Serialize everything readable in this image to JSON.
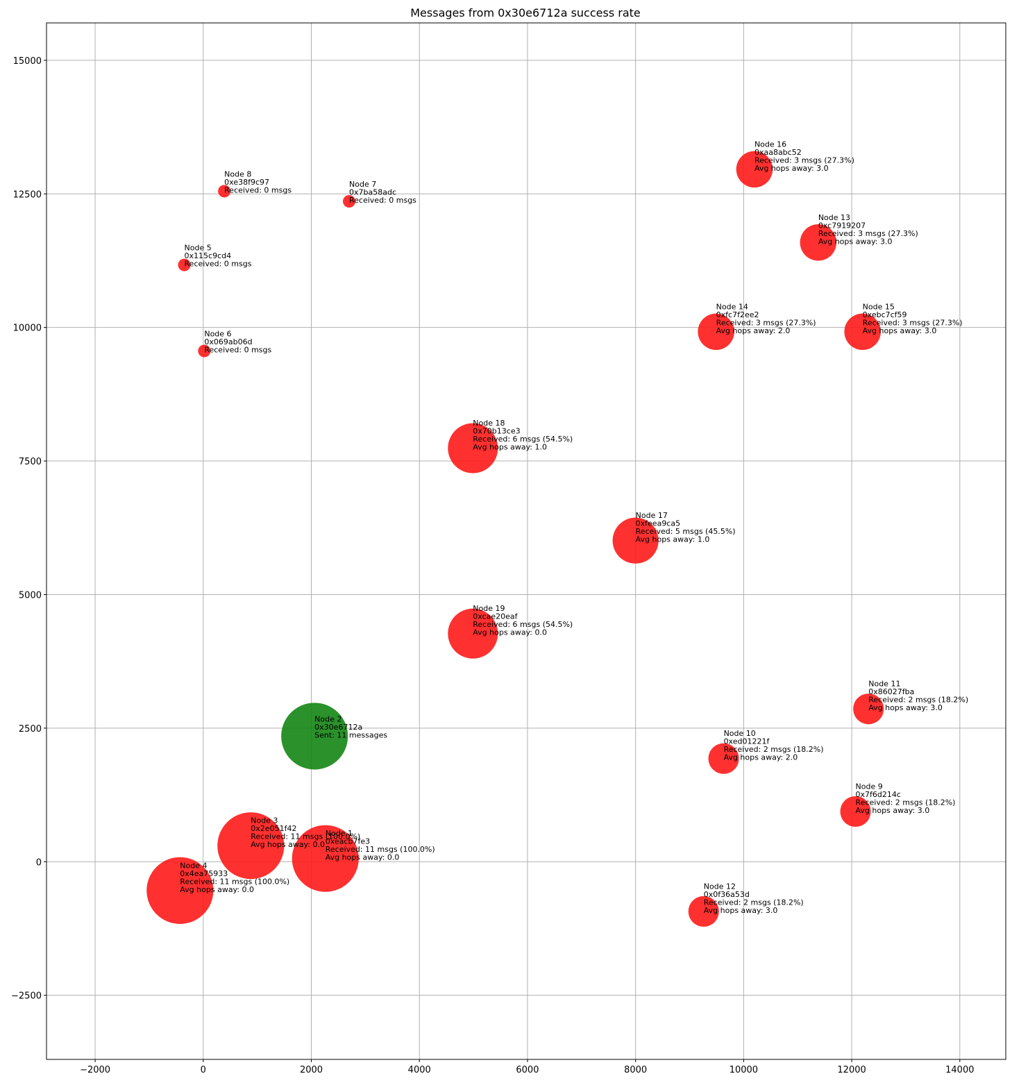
{
  "chart_data": {
    "type": "scatter",
    "title": "Messages from 0x30e6712a success rate",
    "xlabel": "",
    "ylabel": "",
    "xlim": [
      -2900,
      14850
    ],
    "ylim": [
      -3700,
      15700
    ],
    "grid": true,
    "x_ticks": [
      -2000,
      0,
      2000,
      4000,
      6000,
      8000,
      10000,
      12000,
      14000
    ],
    "y_ticks": [
      -2500,
      0,
      2500,
      5000,
      7500,
      10000,
      12500,
      15000
    ],
    "x_tick_labels": [
      "−2000",
      "0",
      "2000",
      "4000",
      "6000",
      "8000",
      "10000",
      "12000",
      "14000"
    ],
    "y_tick_labels": [
      "−2500",
      "0",
      "2500",
      "5000",
      "7500",
      "10000",
      "12500",
      "15000"
    ],
    "colors": {
      "sender": "#148514",
      "receiver": "#ff1a1a"
    },
    "points": [
      {
        "x": 2260,
        "y": 60,
        "received": 11,
        "role": "receiver",
        "lines": [
          "Node 1",
          "0xeacb7fe3",
          "Received: 11 msgs (100.0%)",
          "Avg hops away: 0.0"
        ]
      },
      {
        "x": 2060,
        "y": 2350,
        "received": 11,
        "role": "sender",
        "lines": [
          "Node 2",
          "0x30e6712a",
          "Sent: 11 messages"
        ]
      },
      {
        "x": 880,
        "y": 300,
        "received": 11,
        "role": "receiver",
        "lines": [
          "Node 3",
          "0x2e051f42",
          "Received: 11 msgs (100.0%)",
          "Avg hops away: 0.0"
        ]
      },
      {
        "x": -430,
        "y": -540,
        "received": 11,
        "role": "receiver",
        "lines": [
          "Node 4",
          "0x4ea75933",
          "Received: 11 msgs (100.0%)",
          "Avg hops away: 0.0"
        ]
      },
      {
        "x": -350,
        "y": 11170,
        "received": 0,
        "role": "receiver",
        "lines": [
          "Node 5",
          "0x115c9cd4",
          "Received: 0 msgs"
        ]
      },
      {
        "x": 20,
        "y": 9560,
        "received": 0,
        "role": "receiver",
        "lines": [
          "Node 6",
          "0x069ab06d",
          "Received: 0 msgs"
        ]
      },
      {
        "x": 2700,
        "y": 12360,
        "received": 0,
        "role": "receiver",
        "lines": [
          "Node 7",
          "0x7ba58adc",
          "Received: 0 msgs"
        ]
      },
      {
        "x": 390,
        "y": 12550,
        "received": 0,
        "role": "receiver",
        "lines": [
          "Node 8",
          "0xe38f9c97",
          "Received: 0 msgs"
        ]
      },
      {
        "x": 12070,
        "y": 940,
        "received": 2,
        "role": "receiver",
        "lines": [
          "Node 9",
          "0x7f6d214c",
          "Received: 2 msgs (18.2%)",
          "Avg hops away: 3.0"
        ]
      },
      {
        "x": 9630,
        "y": 1930,
        "received": 2,
        "role": "receiver",
        "lines": [
          "Node 10",
          "0xed01221f",
          "Received: 2 msgs (18.2%)",
          "Avg hops away: 2.0"
        ]
      },
      {
        "x": 12310,
        "y": 2860,
        "received": 2,
        "role": "receiver",
        "lines": [
          "Node 11",
          "0x86027fba",
          "Received: 2 msgs (18.2%)",
          "Avg hops away: 3.0"
        ]
      },
      {
        "x": 9260,
        "y": -930,
        "received": 2,
        "role": "receiver",
        "lines": [
          "Node 12",
          "0x0f36a53d",
          "Received: 2 msgs (18.2%)",
          "Avg hops away: 3.0"
        ]
      },
      {
        "x": 11380,
        "y": 11590,
        "received": 3,
        "role": "receiver",
        "lines": [
          "Node 13",
          "0xc7919207",
          "Received: 3 msgs (27.3%)",
          "Avg hops away: 3.0"
        ]
      },
      {
        "x": 9490,
        "y": 9920,
        "received": 3,
        "role": "receiver",
        "lines": [
          "Node 14",
          "0xfc7f2ee2",
          "Received: 3 msgs (27.3%)",
          "Avg hops away: 2.0"
        ]
      },
      {
        "x": 12200,
        "y": 9920,
        "received": 3,
        "role": "receiver",
        "lines": [
          "Node 15",
          "0xebc7cf59",
          "Received: 3 msgs (27.3%)",
          "Avg hops away: 3.0"
        ]
      },
      {
        "x": 10200,
        "y": 12960,
        "received": 3,
        "role": "receiver",
        "lines": [
          "Node 16",
          "0xaa8abc52",
          "Received: 3 msgs (27.3%)",
          "Avg hops away: 3.0"
        ]
      },
      {
        "x": 8000,
        "y": 6010,
        "received": 5,
        "role": "receiver",
        "lines": [
          "Node 17",
          "0xfeea9ca5",
          "Received: 5 msgs (45.5%)",
          "Avg hops away: 1.0"
        ]
      },
      {
        "x": 4990,
        "y": 7740,
        "received": 6,
        "role": "receiver",
        "lines": [
          "Node 18",
          "0x70b13ce3",
          "Received: 6 msgs (54.5%)",
          "Avg hops away: 1.0"
        ]
      },
      {
        "x": 4990,
        "y": 4270,
        "received": 6,
        "role": "receiver",
        "lines": [
          "Node 19",
          "0xcae20eaf",
          "Received: 6 msgs (54.5%)",
          "Avg hops away: 0.0"
        ]
      }
    ]
  }
}
